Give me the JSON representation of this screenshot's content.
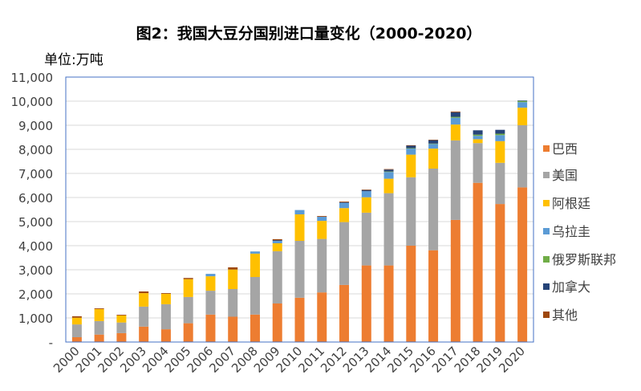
{
  "chart_data": {
    "type": "bar",
    "stacked": true,
    "title": "图2：我国大豆分国别进口量变化（2000-2020）",
    "unit_label": "单位:万吨",
    "xlabel": "",
    "ylabel": "",
    "ylim": [
      0,
      11000
    ],
    "y_ticks": [
      "-",
      "1,000",
      "2,000",
      "3,000",
      "4,000",
      "5,000",
      "6,000",
      "7,000",
      "8,000",
      "9,000",
      "10,000",
      "11,000"
    ],
    "grid": true,
    "legend_position": "right",
    "categories": [
      "2000",
      "2001",
      "2002",
      "2003",
      "2004",
      "2005",
      "2006",
      "2007",
      "2008",
      "2009",
      "2010",
      "2011",
      "2012",
      "2013",
      "2014",
      "2015",
      "2016",
      "2017",
      "2018",
      "2019",
      "2020"
    ],
    "series": [
      {
        "name": "巴西",
        "color": "#ED7D31",
        "values": [
          200,
          310,
          370,
          640,
          530,
          780,
          1140,
          1050,
          1140,
          1600,
          1840,
          2060,
          2370,
          3180,
          3180,
          4000,
          3810,
          5070,
          6610,
          5730,
          6420
        ]
      },
      {
        "name": "美国",
        "color": "#A5A5A5",
        "values": [
          530,
          560,
          440,
          830,
          1040,
          1090,
          990,
          1150,
          1560,
          2170,
          2360,
          2220,
          2610,
          2190,
          3000,
          2840,
          3390,
          3300,
          1650,
          1710,
          2580
        ]
      },
      {
        "name": "阿根廷",
        "color": "#FFC000",
        "values": [
          280,
          500,
          290,
          560,
          430,
          740,
          600,
          810,
          970,
          330,
          1100,
          750,
          580,
          640,
          600,
          940,
          830,
          660,
          160,
          900,
          730
        ]
      },
      {
        "name": "乌拉圭",
        "color": "#5B9BD5",
        "values": [
          0,
          0,
          0,
          0,
          0,
          0,
          100,
          0,
          90,
          100,
          180,
          170,
          220,
          250,
          280,
          250,
          190,
          280,
          140,
          250,
          230
        ]
      },
      {
        "name": "俄罗斯联邦",
        "color": "#70AD47",
        "values": [
          0,
          0,
          0,
          0,
          0,
          0,
          0,
          0,
          0,
          0,
          0,
          0,
          0,
          0,
          20,
          20,
          20,
          40,
          50,
          60,
          50
        ]
      },
      {
        "name": "加拿大",
        "color": "#264478",
        "values": [
          0,
          0,
          0,
          0,
          0,
          0,
          0,
          0,
          0,
          30,
          0,
          0,
          20,
          50,
          80,
          100,
          140,
          190,
          180,
          160,
          20
        ]
      },
      {
        "name": "其他",
        "color": "#9E480E",
        "values": [
          60,
          30,
          30,
          70,
          30,
          50,
          0,
          90,
          0,
          40,
          0,
          30,
          30,
          20,
          20,
          20,
          20,
          30,
          0,
          0,
          0
        ]
      }
    ]
  }
}
